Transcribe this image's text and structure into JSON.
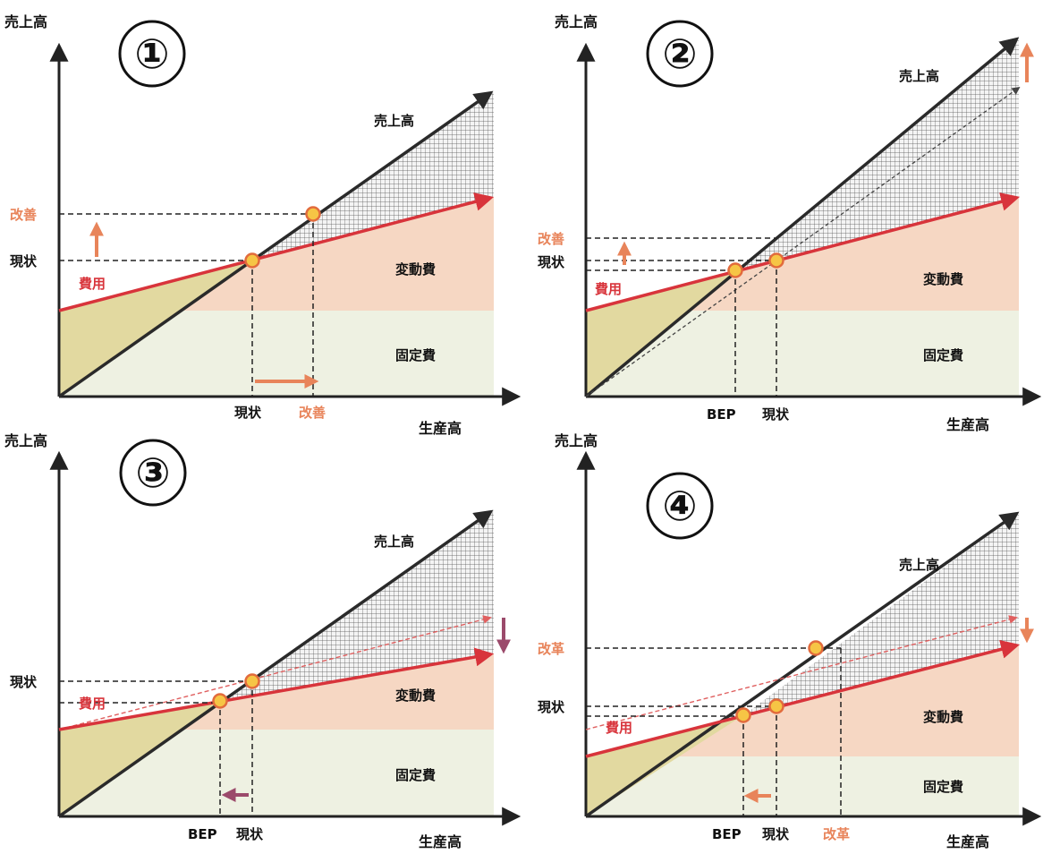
{
  "colors": {
    "axis": "#222222",
    "sales_line": "#2a2a2a",
    "cost_line": "#d8343b",
    "cost_line_dashed": "#e06060",
    "fixed_fill": "#eef1e2",
    "variable_fill": "#f6d7c3",
    "loss_fill": "#e2d9a0",
    "improve": "#e8845a",
    "point_fill": "#f6c545",
    "point_stroke": "#e26b3c",
    "purple_arrow": "#9b4a6b"
  },
  "panels": [
    {
      "number": "①",
      "y_axis": "売上高",
      "x_axis": "生産高",
      "sales_label": "売上高",
      "cost_label": "費用",
      "variable_label": "変動費",
      "fixed_label": "固定費",
      "y_marks": [
        "改善",
        "現状"
      ],
      "x_marks": [
        "現状",
        "改善"
      ]
    },
    {
      "number": "②",
      "y_axis": "売上高",
      "x_axis": "生産高",
      "sales_label": "売上高",
      "cost_label": "費用",
      "variable_label": "変動費",
      "fixed_label": "固定費",
      "y_marks": [
        "改善",
        "現状"
      ],
      "x_marks": [
        "BEP",
        "現状"
      ]
    },
    {
      "number": "③",
      "y_axis": "売上高",
      "x_axis": "生産高",
      "sales_label": "売上高",
      "cost_label": "費用",
      "variable_label": "変動費",
      "fixed_label": "固定費",
      "y_marks": [
        "現状"
      ],
      "x_marks": [
        "BEP",
        "現状"
      ]
    },
    {
      "number": "④",
      "y_axis": "売上高",
      "x_axis": "生産高",
      "sales_label": "売上高",
      "cost_label": "費用",
      "variable_label": "変動費",
      "fixed_label": "固定費",
      "y_marks": [
        "改革",
        "現状"
      ],
      "x_marks": [
        "BEP",
        "現状",
        "改革"
      ]
    }
  ]
}
